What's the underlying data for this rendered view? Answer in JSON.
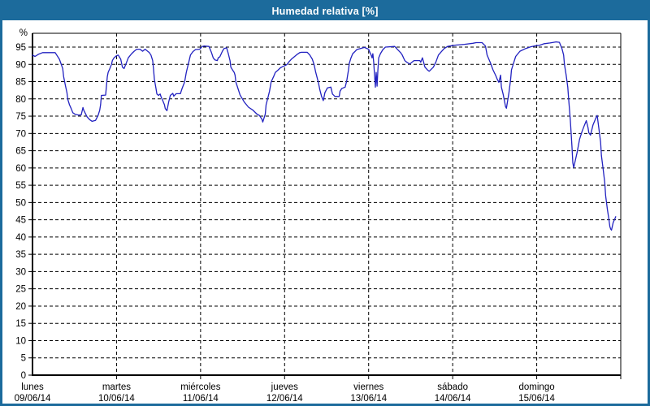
{
  "window": {
    "title": "Humedad relativa [%]"
  },
  "colors": {
    "titlebar_bg": "#1c6b9c",
    "titlebar_text": "#ffffff",
    "frame": "#1c6b9c",
    "plot_bg": "#ffffff",
    "line": "#2222c0",
    "grid": "#000000",
    "text": "#000000"
  },
  "chart_data": {
    "type": "line",
    "title": "Humedad relativa [%]",
    "y_unit": "%",
    "ylabel": "Humedad relativa",
    "ylim": [
      0,
      99
    ],
    "y_ticks": [
      0,
      5,
      10,
      15,
      20,
      25,
      30,
      35,
      40,
      45,
      50,
      55,
      60,
      65,
      70,
      75,
      80,
      85,
      90,
      95
    ],
    "grid": "dashed",
    "legend": "none",
    "x_days": [
      {
        "name": "lunes",
        "date": "09/06/14"
      },
      {
        "name": "martes",
        "date": "10/06/14"
      },
      {
        "name": "miércoles",
        "date": "11/06/14"
      },
      {
        "name": "jueves",
        "date": "12/06/14"
      },
      {
        "name": "viernes",
        "date": "13/06/14"
      },
      {
        "name": "sábado",
        "date": "14/06/14"
      },
      {
        "name": "domingo",
        "date": "15/06/14"
      }
    ],
    "xlim_days": [
      0,
      7
    ],
    "series": [
      {
        "name": "Humedad relativa [%]",
        "color": "#2222c0",
        "points": [
          [
            0.0,
            92.7
          ],
          [
            0.03,
            92.3
          ],
          [
            0.07,
            92.9
          ],
          [
            0.12,
            93.4
          ],
          [
            0.19,
            93.4
          ],
          [
            0.27,
            93.4
          ],
          [
            0.32,
            91.5
          ],
          [
            0.36,
            88.8
          ],
          [
            0.37,
            86.5
          ],
          [
            0.39,
            84.1
          ],
          [
            0.41,
            81.8
          ],
          [
            0.42,
            79.9
          ],
          [
            0.44,
            78.3
          ],
          [
            0.46,
            77.2
          ],
          [
            0.48,
            76.0
          ],
          [
            0.51,
            75.5
          ],
          [
            0.55,
            75.3
          ],
          [
            0.58,
            75.4
          ],
          [
            0.6,
            77.5
          ],
          [
            0.61,
            76.7
          ],
          [
            0.65,
            74.8
          ],
          [
            0.68,
            74.0
          ],
          [
            0.71,
            73.5
          ],
          [
            0.75,
            73.8
          ],
          [
            0.78,
            75.2
          ],
          [
            0.8,
            76.7
          ],
          [
            0.81,
            78.3
          ],
          [
            0.82,
            81.0
          ],
          [
            0.87,
            81.1
          ],
          [
            0.89,
            86.5
          ],
          [
            0.9,
            87.7
          ],
          [
            0.92,
            88.8
          ],
          [
            0.94,
            90.0
          ],
          [
            0.95,
            91.1
          ],
          [
            0.97,
            91.9
          ],
          [
            1.0,
            92.5
          ],
          [
            1.02,
            92.7
          ],
          [
            1.05,
            91.5
          ],
          [
            1.07,
            89.2
          ],
          [
            1.09,
            88.8
          ],
          [
            1.11,
            90.0
          ],
          [
            1.14,
            91.9
          ],
          [
            1.18,
            93.1
          ],
          [
            1.21,
            93.8
          ],
          [
            1.24,
            94.4
          ],
          [
            1.28,
            94.4
          ],
          [
            1.31,
            93.8
          ],
          [
            1.34,
            94.4
          ],
          [
            1.39,
            93.4
          ],
          [
            1.41,
            92.7
          ],
          [
            1.43,
            91.1
          ],
          [
            1.44,
            88.8
          ],
          [
            1.45,
            85.7
          ],
          [
            1.47,
            83.0
          ],
          [
            1.48,
            81.4
          ],
          [
            1.5,
            81.0
          ],
          [
            1.52,
            81.4
          ],
          [
            1.53,
            80.6
          ],
          [
            1.55,
            79.5
          ],
          [
            1.57,
            78.3
          ],
          [
            1.58,
            77.2
          ],
          [
            1.6,
            76.6
          ],
          [
            1.62,
            79.1
          ],
          [
            1.64,
            81.0
          ],
          [
            1.67,
            81.6
          ],
          [
            1.68,
            80.8
          ],
          [
            1.71,
            81.5
          ],
          [
            1.76,
            81.5
          ],
          [
            1.78,
            83.0
          ],
          [
            1.81,
            84.9
          ],
          [
            1.83,
            87.7
          ],
          [
            1.86,
            90.7
          ],
          [
            1.88,
            92.7
          ],
          [
            1.91,
            93.7
          ],
          [
            1.94,
            94.3
          ],
          [
            1.99,
            94.4
          ],
          [
            2.02,
            95.2
          ],
          [
            2.04,
            95.3
          ],
          [
            2.1,
            95.2
          ],
          [
            2.13,
            93.4
          ],
          [
            2.15,
            91.9
          ],
          [
            2.17,
            91.3
          ],
          [
            2.2,
            91.1
          ],
          [
            2.21,
            91.9
          ],
          [
            2.23,
            92.2
          ],
          [
            2.26,
            93.8
          ],
          [
            2.28,
            94.6
          ],
          [
            2.31,
            94.8
          ],
          [
            2.33,
            93.1
          ],
          [
            2.35,
            91.1
          ],
          [
            2.36,
            89.2
          ],
          [
            2.38,
            88.4
          ],
          [
            2.4,
            87.7
          ],
          [
            2.41,
            86.9
          ],
          [
            2.42,
            84.9
          ],
          [
            2.47,
            81.1
          ],
          [
            2.52,
            79.1
          ],
          [
            2.57,
            77.6
          ],
          [
            2.62,
            76.8
          ],
          [
            2.67,
            75.6
          ],
          [
            2.7,
            75.2
          ],
          [
            2.73,
            74.1
          ],
          [
            2.74,
            73.3
          ],
          [
            2.77,
            75.6
          ],
          [
            2.78,
            78.3
          ],
          [
            2.8,
            80.2
          ],
          [
            2.82,
            82.2
          ],
          [
            2.84,
            84.9
          ],
          [
            2.87,
            86.5
          ],
          [
            2.89,
            87.7
          ],
          [
            2.92,
            88.3
          ],
          [
            2.95,
            89.0
          ],
          [
            2.98,
            89.4
          ],
          [
            3.0,
            89.6
          ],
          [
            3.03,
            90.0
          ],
          [
            3.05,
            90.7
          ],
          [
            3.08,
            91.5
          ],
          [
            3.12,
            92.3
          ],
          [
            3.15,
            92.9
          ],
          [
            3.18,
            93.4
          ],
          [
            3.2,
            93.5
          ],
          [
            3.27,
            93.5
          ],
          [
            3.3,
            92.7
          ],
          [
            3.33,
            91.5
          ],
          [
            3.35,
            90.0
          ],
          [
            3.37,
            87.7
          ],
          [
            3.4,
            84.9
          ],
          [
            3.42,
            82.6
          ],
          [
            3.44,
            80.7
          ],
          [
            3.46,
            79.5
          ],
          [
            3.48,
            81.8
          ],
          [
            3.51,
            83.2
          ],
          [
            3.55,
            83.4
          ],
          [
            3.57,
            81.4
          ],
          [
            3.6,
            80.7
          ],
          [
            3.65,
            80.7
          ],
          [
            3.66,
            82.2
          ],
          [
            3.68,
            83.0
          ],
          [
            3.72,
            83.4
          ],
          [
            3.74,
            85.3
          ],
          [
            3.76,
            88.4
          ],
          [
            3.77,
            90.3
          ],
          [
            3.79,
            91.9
          ],
          [
            3.81,
            93.1
          ],
          [
            3.84,
            93.8
          ],
          [
            3.86,
            94.3
          ],
          [
            3.95,
            94.9
          ],
          [
            4.0,
            94.4
          ],
          [
            4.01,
            93.8
          ],
          [
            4.03,
            92.7
          ],
          [
            4.04,
            91.9
          ],
          [
            4.05,
            93.1
          ],
          [
            4.06,
            90.7
          ],
          [
            4.07,
            86.9
          ],
          [
            4.08,
            83.4
          ],
          [
            4.09,
            87.7
          ],
          [
            4.1,
            83.7
          ],
          [
            4.11,
            88.4
          ],
          [
            4.12,
            91.9
          ],
          [
            4.14,
            93.1
          ],
          [
            4.17,
            94.3
          ],
          [
            4.2,
            95.0
          ],
          [
            4.31,
            95.2
          ],
          [
            4.34,
            94.4
          ],
          [
            4.38,
            93.4
          ],
          [
            4.4,
            92.7
          ],
          [
            4.43,
            91.1
          ],
          [
            4.46,
            90.5
          ],
          [
            4.49,
            90.1
          ],
          [
            4.52,
            90.7
          ],
          [
            4.54,
            91.1
          ],
          [
            4.61,
            91.1
          ],
          [
            4.62,
            90.6
          ],
          [
            4.64,
            91.9
          ],
          [
            4.67,
            89.2
          ],
          [
            4.7,
            88.4
          ],
          [
            4.72,
            88.0
          ],
          [
            4.77,
            89.2
          ],
          [
            4.8,
            90.7
          ],
          [
            4.83,
            92.7
          ],
          [
            4.87,
            93.8
          ],
          [
            4.9,
            94.6
          ],
          [
            4.94,
            95.2
          ],
          [
            4.99,
            95.4
          ],
          [
            5.04,
            95.6
          ],
          [
            5.14,
            95.8
          ],
          [
            5.24,
            96.1
          ],
          [
            5.28,
            96.3
          ],
          [
            5.35,
            96.3
          ],
          [
            5.39,
            95.3
          ],
          [
            5.41,
            92.7
          ],
          [
            5.45,
            90.4
          ],
          [
            5.48,
            88.4
          ],
          [
            5.51,
            86.9
          ],
          [
            5.53,
            85.7
          ],
          [
            5.55,
            84.8
          ],
          [
            5.57,
            86.9
          ],
          [
            5.58,
            83.4
          ],
          [
            5.6,
            81.4
          ],
          [
            5.63,
            77.7
          ],
          [
            5.64,
            77.3
          ],
          [
            5.67,
            81.8
          ],
          [
            5.69,
            85.7
          ],
          [
            5.7,
            88.4
          ],
          [
            5.72,
            90.0
          ],
          [
            5.75,
            92.3
          ],
          [
            5.8,
            93.8
          ],
          [
            5.87,
            94.6
          ],
          [
            5.93,
            95.1
          ],
          [
            5.99,
            95.4
          ],
          [
            6.03,
            95.5
          ],
          [
            6.09,
            96.0
          ],
          [
            6.16,
            96.2
          ],
          [
            6.23,
            96.5
          ],
          [
            6.27,
            96.4
          ],
          [
            6.28,
            95.8
          ],
          [
            6.3,
            94.6
          ],
          [
            6.32,
            92.7
          ],
          [
            6.33,
            90.0
          ],
          [
            6.35,
            86.9
          ],
          [
            6.37,
            83.4
          ],
          [
            6.38,
            79.9
          ],
          [
            6.4,
            74.0
          ],
          [
            6.42,
            66.0
          ],
          [
            6.43,
            61.5
          ],
          [
            6.44,
            60.1
          ],
          [
            6.48,
            64.4
          ],
          [
            6.51,
            68.3
          ],
          [
            6.54,
            70.6
          ],
          [
            6.57,
            72.5
          ],
          [
            6.59,
            73.7
          ],
          [
            6.61,
            71.7
          ],
          [
            6.62,
            70.2
          ],
          [
            6.64,
            69.5
          ],
          [
            6.67,
            72.5
          ],
          [
            6.71,
            74.8
          ],
          [
            6.72,
            75.2
          ],
          [
            6.74,
            71.4
          ],
          [
            6.76,
            67.5
          ],
          [
            6.77,
            63.6
          ],
          [
            6.79,
            59.7
          ],
          [
            6.81,
            55.8
          ],
          [
            6.82,
            52.0
          ],
          [
            6.84,
            48.1
          ],
          [
            6.86,
            45.0
          ],
          [
            6.87,
            43.0
          ],
          [
            6.88,
            42.3
          ],
          [
            6.89,
            42.0
          ],
          [
            6.91,
            44.2
          ],
          [
            6.93,
            45.3
          ],
          [
            6.94,
            45.9
          ]
        ]
      }
    ]
  }
}
